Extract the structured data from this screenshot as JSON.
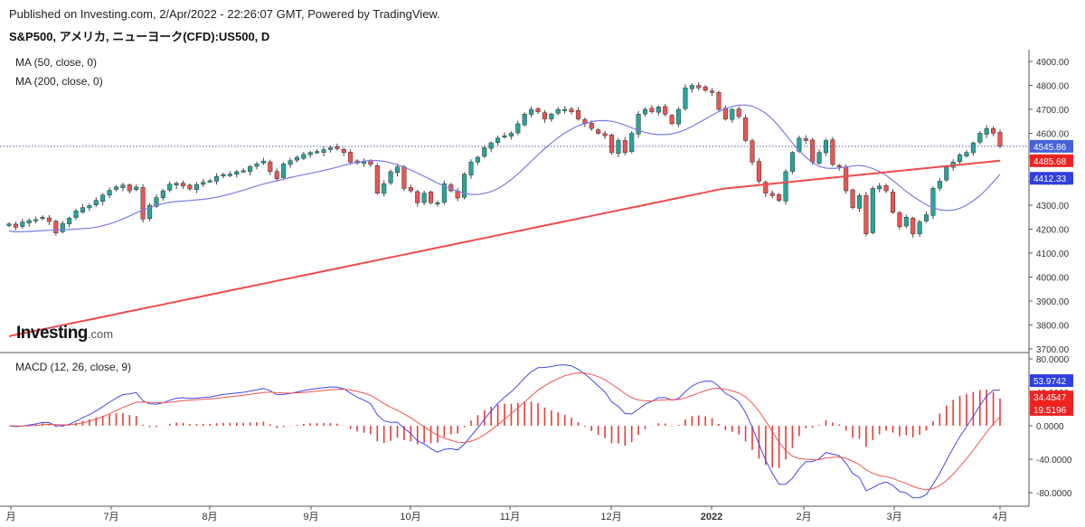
{
  "header": {
    "published": "Published on Investing.com, 2/Apr/2022 - 22:26:07 GMT, Powered by TradingView.",
    "symbol": "S&P500, アメリカ, ニューヨーク(CFD):US500, D"
  },
  "logo": {
    "main": "Investing",
    "suffix": ".com"
  },
  "chart_data": [
    {
      "type": "candlestick",
      "indicators": [
        "MA (50, close, 0)",
        "MA (200, close, 0)"
      ],
      "x_labels": [
        "月",
        "7月",
        "8月",
        "9月",
        "10月",
        "11月",
        "12月",
        "2022",
        "2月",
        "3月",
        "4月"
      ],
      "y_ticks": [
        "4900.00",
        "4800.00",
        "4700.00",
        "4600.00",
        "4500.00",
        "4400.00",
        "4300.00",
        "4200.00",
        "4100.00",
        "4000.00",
        "3900.00",
        "3800.00",
        "3700.00"
      ],
      "ylim": [
        3700,
        4900
      ],
      "last_price_label": "4545.86",
      "ma200_label": "4485.68",
      "ma50_label": "4412.33",
      "close_approx": [
        4222,
        4208,
        4230,
        4236,
        4240,
        4250,
        4232,
        4184,
        4224,
        4246,
        4276,
        4290,
        4298,
        4320,
        4342,
        4362,
        4376,
        4384,
        4360,
        4376,
        4242,
        4300,
        4332,
        4360,
        4388,
        4392,
        4380,
        4368,
        4386,
        4396,
        4402,
        4420,
        4428,
        4430,
        4440,
        4444,
        4462,
        4472,
        4484,
        4440,
        4410,
        4472,
        4486,
        4500,
        4512,
        4520,
        4524,
        4532,
        4540,
        4536,
        4520,
        4480,
        4476,
        4484,
        4470,
        4350,
        4390,
        4440,
        4460,
        4370,
        4360,
        4310,
        4350,
        4310,
        4310,
        4390,
        4360,
        4330,
        4430,
        4480,
        4500,
        4540,
        4560,
        4580,
        4590,
        4600,
        4640,
        4680,
        4700,
        4690,
        4660,
        4680,
        4700,
        4700,
        4690,
        4660,
        4640,
        4620,
        4600,
        4590,
        4520,
        4570,
        4520,
        4600,
        4680,
        4700,
        4690,
        4710,
        4680,
        4640,
        4700,
        4790,
        4800,
        4790,
        4780,
        4770,
        4700,
        4660,
        4700,
        4670,
        4570,
        4480,
        4400,
        4350,
        4340,
        4320,
        4440,
        4520,
        4580,
        4570,
        4480,
        4520,
        4570,
        4470,
        4460,
        4360,
        4290,
        4340,
        4180,
        4370,
        4380,
        4360,
        4270,
        4210,
        4250,
        4180,
        4230,
        4260,
        4370,
        4400,
        4460,
        4480,
        4510,
        4520,
        4560,
        4600,
        4620,
        4600,
        4545.86
      ]
    },
    {
      "type": "macd",
      "label": "MACD (12, 26, close, 9)",
      "y_ticks": [
        "80.0000",
        "40.0000",
        "0.0000",
        "-40.0000",
        "-80.0000"
      ],
      "ylim": [
        -100,
        85
      ],
      "macd_label": "53.9742",
      "signal_label": "34.4547",
      "histogram_label": "19.5196"
    }
  ],
  "colors": {
    "up": "#26a69a",
    "down": "#ef5350",
    "ma50": "#7b7bea",
    "ma200": "#ef4b4b",
    "macd": "#4646ef",
    "signal": "#ef5350",
    "histogram": "#e63c3c"
  }
}
